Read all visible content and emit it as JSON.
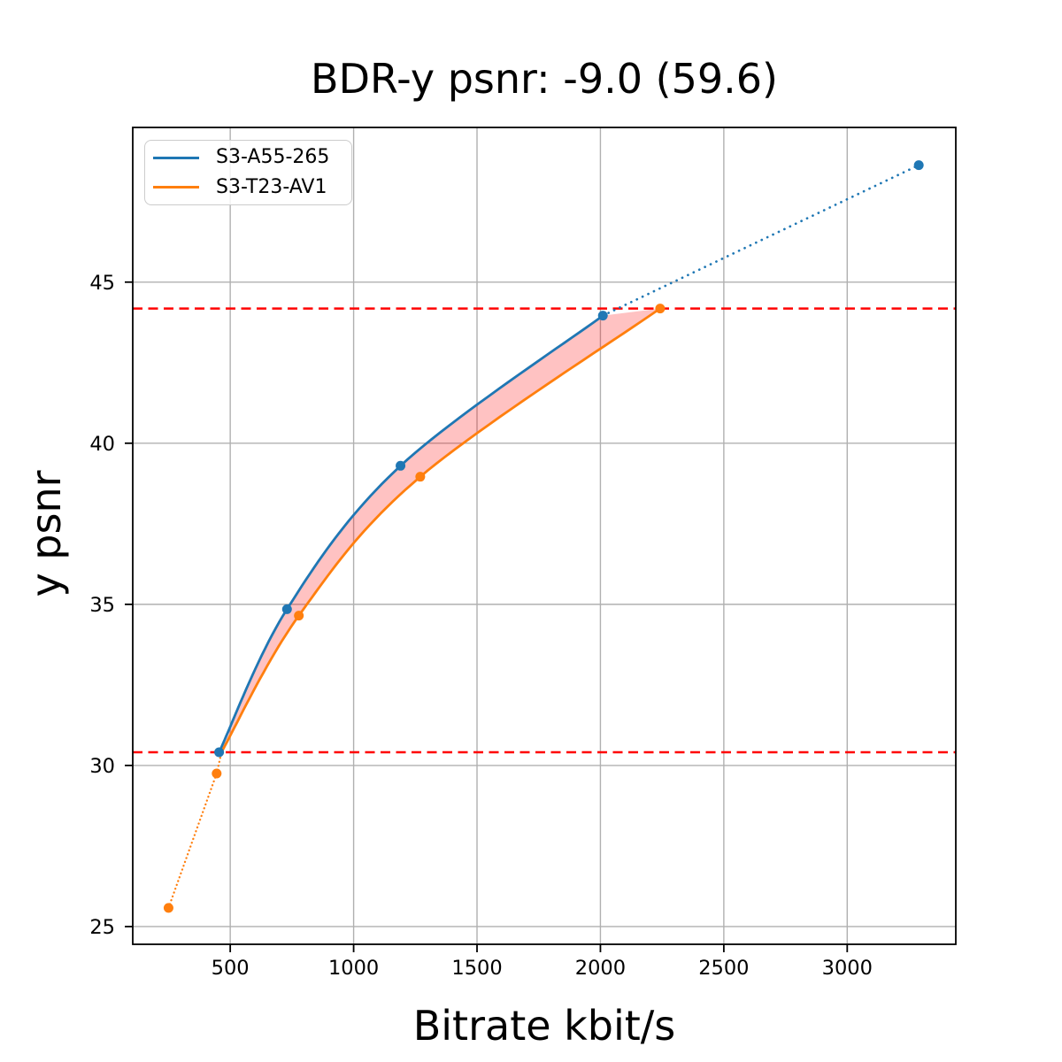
{
  "figure": {
    "title": "BDR-y psnr: -9.0 (59.6)",
    "xlabel": "Bitrate kbit/s",
    "ylabel": "y psnr"
  },
  "chart_data": {
    "type": "line",
    "title": "BDR-y psnr: -9.0 (59.6)",
    "xlabel": "Bitrate kbit/s",
    "ylabel": "y psnr",
    "xlim": [
      105,
      3440
    ],
    "ylim": [
      24.45,
      49.8
    ],
    "xticks": [
      500,
      1000,
      1500,
      2000,
      2500,
      3000
    ],
    "yticks": [
      25,
      30,
      35,
      40,
      45
    ],
    "grid": true,
    "legend_position": "upper left",
    "colors": {
      "grid": "#b0b0b0",
      "spine": "#000000",
      "reference_line": "#ff0000",
      "fill": "#ff0000",
      "text": "#000000"
    },
    "series": [
      {
        "name": "S3-A55-265",
        "color": "#1f77b4",
        "solid_points": [
          [
            455,
            30.41
          ],
          [
            730,
            34.85
          ],
          [
            1190,
            39.3
          ],
          [
            2010,
            43.96
          ]
        ],
        "dotted_points": [
          [
            2010,
            43.96
          ],
          [
            3290,
            48.63
          ]
        ],
        "markers": [
          [
            455,
            30.41
          ],
          [
            730,
            34.85
          ],
          [
            1190,
            39.3
          ],
          [
            2010,
            43.96
          ],
          [
            3290,
            48.63
          ]
        ]
      },
      {
        "name": "S3-T23-AV1",
        "color": "#ff7f0e",
        "solid_points": [
          [
            465,
            30.42
          ],
          [
            778,
            34.65
          ],
          [
            1270,
            38.96
          ],
          [
            2242,
            44.18
          ]
        ],
        "dotted_points": [
          [
            250,
            25.58
          ],
          [
            445,
            29.75
          ],
          [
            465,
            30.42
          ]
        ],
        "markers": [
          [
            250,
            25.58
          ],
          [
            445,
            29.75
          ],
          [
            778,
            34.65
          ],
          [
            1270,
            38.96
          ],
          [
            2242,
            44.18
          ]
        ]
      }
    ],
    "reference_hlines": [
      30.41,
      44.18
    ],
    "fill_between": {
      "upper": "S3-A55-265",
      "lower": "S3-T23-AV1",
      "color": "#ff0000",
      "opacity": 0.24
    }
  }
}
